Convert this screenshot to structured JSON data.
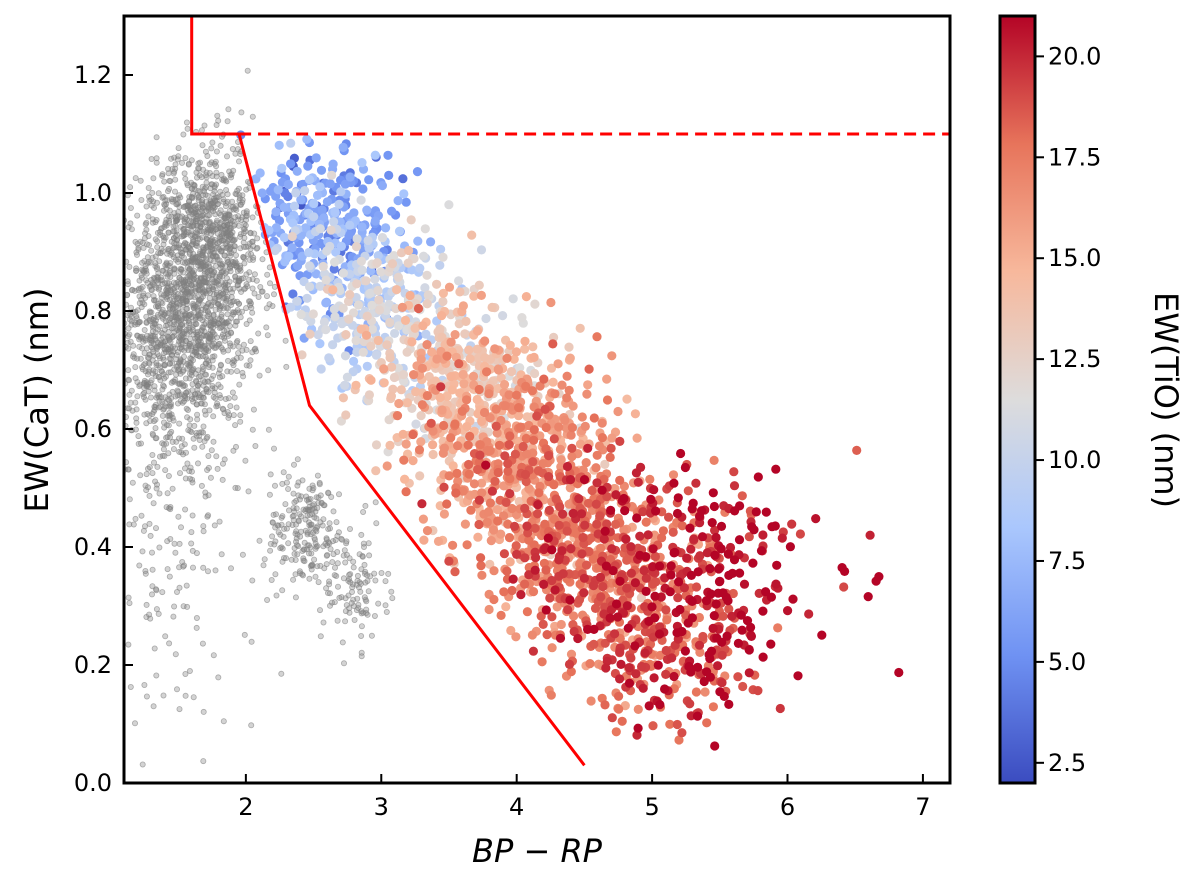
{
  "chart_data": {
    "type": "scatter",
    "title": "",
    "xlabel": "BP − RP",
    "ylabel": "EW(CaT) (nm)",
    "xlim": [
      1.1,
      7.2
    ],
    "ylim": [
      0.0,
      1.3
    ],
    "x_ticks": [
      2,
      3,
      4,
      5,
      6,
      7
    ],
    "x_tick_labels": [
      "2",
      "3",
      "4",
      "5",
      "6",
      "7"
    ],
    "y_ticks": [
      0.0,
      0.2,
      0.4,
      0.6,
      0.8,
      1.0,
      1.2
    ],
    "y_tick_labels": [
      "0.0",
      "0.2",
      "0.4",
      "0.6",
      "0.8",
      "1.0",
      "1.2"
    ],
    "grid": false,
    "legend": "none",
    "colorbar": {
      "label": "EW(TiO) (nm)",
      "range": [
        2.0,
        21.0
      ],
      "ticks": [
        2.5,
        5.0,
        7.5,
        10.0,
        12.5,
        15.0,
        17.5,
        20.0
      ],
      "tick_labels": [
        "2.5",
        "5.0",
        "7.5",
        "10.0",
        "12.5",
        "15.0",
        "17.5",
        "20.0"
      ],
      "colormap": "coolwarm",
      "colors": [
        "#3b4cc0",
        "#6f92f3",
        "#aac7fd",
        "#dddcdc",
        "#f7b89c",
        "#e7745b",
        "#b40426"
      ]
    },
    "series": [
      {
        "kind": "background-points",
        "color": "#808080",
        "density": [
          {
            "x": 1.6,
            "y": 0.83,
            "sx": 0.25,
            "sy": 0.11,
            "weight": 0.45
          },
          {
            "x": 1.75,
            "y": 0.93,
            "sx": 0.2,
            "sy": 0.08,
            "weight": 0.2
          },
          {
            "x": 1.4,
            "y": 0.7,
            "sx": 0.22,
            "sy": 0.1,
            "weight": 0.15
          },
          {
            "x": 2.45,
            "y": 0.43,
            "sx": 0.15,
            "sy": 0.05,
            "weight": 0.08
          },
          {
            "x": 2.8,
            "y": 0.33,
            "sx": 0.12,
            "sy": 0.05,
            "weight": 0.04
          },
          {
            "x": 1.5,
            "y": 0.45,
            "sx": 0.3,
            "sy": 0.2,
            "weight": 0.08
          }
        ]
      },
      {
        "kind": "colored-points",
        "color_by": "EW(TiO)",
        "density": [
          {
            "x": 2.5,
            "y": 0.95,
            "sx": 0.3,
            "sy": 0.07,
            "weight": 0.12,
            "c": 6.0
          },
          {
            "x": 2.9,
            "y": 0.82,
            "sx": 0.3,
            "sy": 0.07,
            "weight": 0.12,
            "c": 10.0
          },
          {
            "x": 3.5,
            "y": 0.7,
            "sx": 0.3,
            "sy": 0.07,
            "weight": 0.15,
            "c": 13.5
          },
          {
            "x": 4.0,
            "y": 0.55,
            "sx": 0.35,
            "sy": 0.08,
            "weight": 0.2,
            "c": 16.0
          },
          {
            "x": 4.5,
            "y": 0.4,
            "sx": 0.35,
            "sy": 0.08,
            "weight": 0.2,
            "c": 17.5
          },
          {
            "x": 5.0,
            "y": 0.25,
            "sx": 0.35,
            "sy": 0.08,
            "weight": 0.13,
            "c": 18.5
          },
          {
            "x": 5.5,
            "y": 0.35,
            "sx": 0.35,
            "sy": 0.1,
            "weight": 0.08,
            "c": 21.0
          }
        ]
      },
      {
        "kind": "line",
        "style": "solid",
        "color": "#ff0000",
        "x": [
          1.95,
          2.47,
          4.5
        ],
        "y": [
          1.1,
          0.64,
          0.03
        ]
      },
      {
        "kind": "line",
        "style": "solid",
        "color": "#ff0000",
        "x": [
          1.6,
          1.6,
          1.95
        ],
        "y": [
          1.3,
          1.1,
          1.1
        ]
      },
      {
        "kind": "line",
        "style": "dashed",
        "color": "#ff0000",
        "x": [
          1.95,
          7.2
        ],
        "y": [
          1.1,
          1.1
        ]
      }
    ]
  }
}
